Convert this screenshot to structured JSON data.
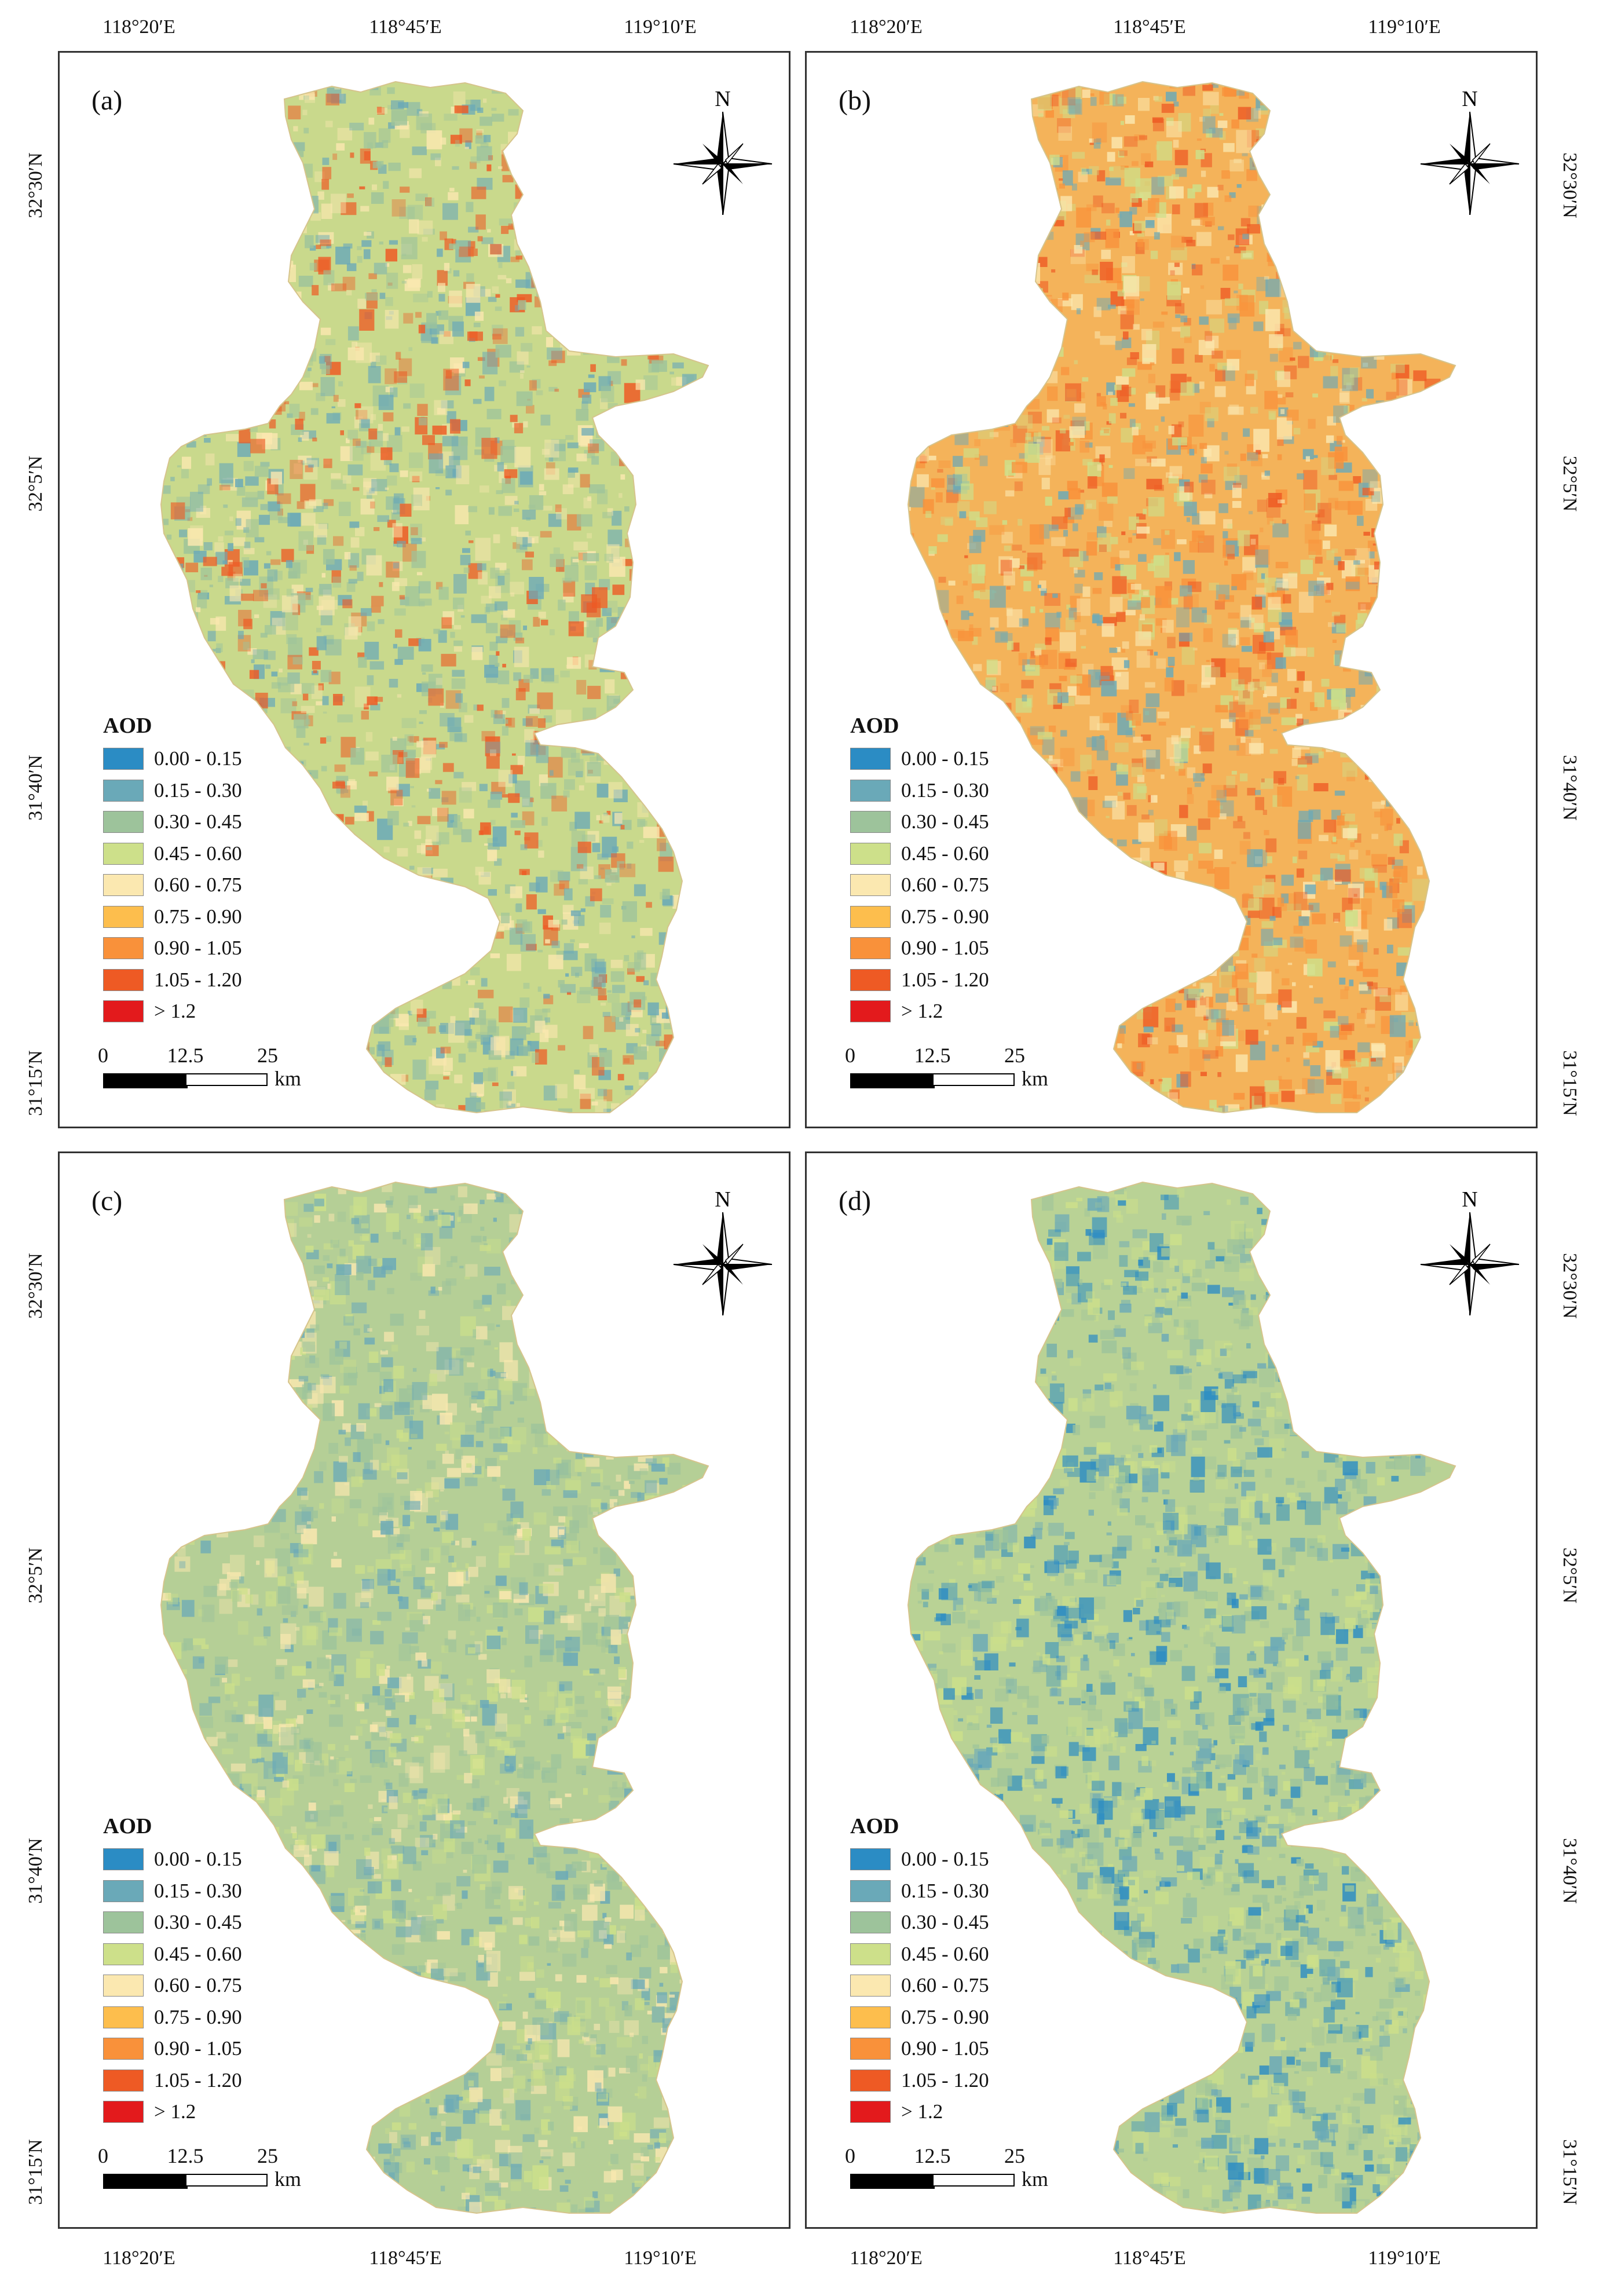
{
  "coordinates": {
    "lon_labels": [
      "118°20′E",
      "118°45′E",
      "119°10′E"
    ],
    "lat_labels": [
      "32°30′N",
      "32°5′N",
      "31°40′N",
      "31°15′N"
    ]
  },
  "legend": {
    "title": "AOD",
    "classes": [
      {
        "label": "0.00 - 0.15",
        "color": "#2b8cc4"
      },
      {
        "label": "0.15 - 0.30",
        "color": "#6aa9b8"
      },
      {
        "label": "0.30 - 0.45",
        "color": "#9dc39b"
      },
      {
        "label": "0.45 - 0.60",
        "color": "#cde08a"
      },
      {
        "label": "0.60 - 0.75",
        "color": "#fbe8b0"
      },
      {
        "label": "0.75 - 0.90",
        "color": "#fdbe4d"
      },
      {
        "label": "0.90 - 1.05",
        "color": "#f9913a"
      },
      {
        "label": "1.05 - 1.20",
        "color": "#ee5a24"
      },
      {
        "label": "> 1.2",
        "color": "#e31a1c"
      }
    ]
  },
  "north_label": "N",
  "scale_bar": {
    "ticks": [
      "0",
      "12.5",
      "25"
    ],
    "unit": "km"
  },
  "panels": [
    {
      "label": "(a)",
      "base": "#c9d98c",
      "mix": [
        "#9dc39b",
        "#6aa9b8",
        "#fbe8b0",
        "#ee5a24"
      ]
    },
    {
      "label": "(b)",
      "base": "#f4b35a",
      "mix": [
        "#f9913a",
        "#fbe8b0",
        "#6aa9b8",
        "#ee5a24",
        "#cde08a"
      ]
    },
    {
      "label": "(c)",
      "base": "#b5cf96",
      "mix": [
        "#9dc39b",
        "#6aa9b8",
        "#cde08a",
        "#fbe8b0"
      ]
    },
    {
      "label": "(d)",
      "base": "#b9d295",
      "mix": [
        "#6aa9b8",
        "#9dc39b",
        "#cde08a",
        "#2b8cc4"
      ]
    }
  ]
}
